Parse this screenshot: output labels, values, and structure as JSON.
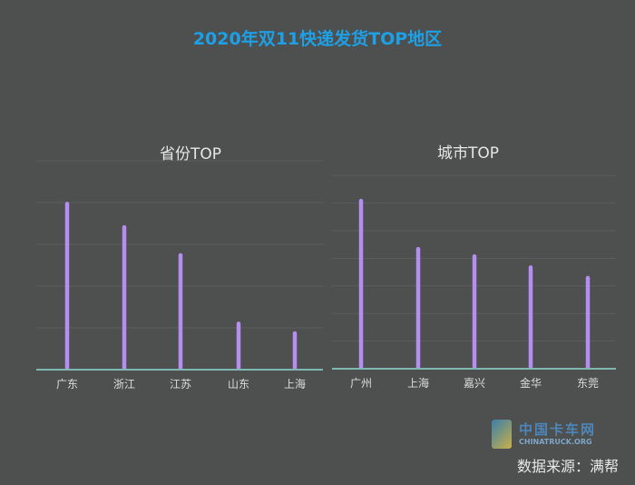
{
  "title": "2020年双11快递发货TOP地区",
  "source": "数据来源：满帮",
  "watermark": {
    "cn": "中国卡车网",
    "en": "CHINATRUCK.ORG"
  },
  "colors": {
    "bar": "#b48ef0",
    "axis": "#7fb8b0",
    "grid": "#5c5d5d",
    "title": "#1ea0e6",
    "text": "#dddddd"
  },
  "chart_data": [
    {
      "type": "bar",
      "title": "省份TOP",
      "categories": [
        "广东",
        "浙江",
        "江苏",
        "山东",
        "上海"
      ],
      "values": [
        3.97,
        3.41,
        2.74,
        1.1,
        0.87
      ],
      "ylim": [
        0,
        5
      ],
      "grid": true,
      "xlabel": "",
      "ylabel": ""
    },
    {
      "type": "bar",
      "title": "城市TOP",
      "categories": [
        "广州",
        "上海",
        "嘉兴",
        "金华",
        "东莞"
      ],
      "values": [
        6.08,
        4.34,
        4.07,
        3.67,
        3.29
      ],
      "ylim": [
        0,
        7
      ],
      "grid": true,
      "xlabel": "",
      "ylabel": ""
    }
  ]
}
